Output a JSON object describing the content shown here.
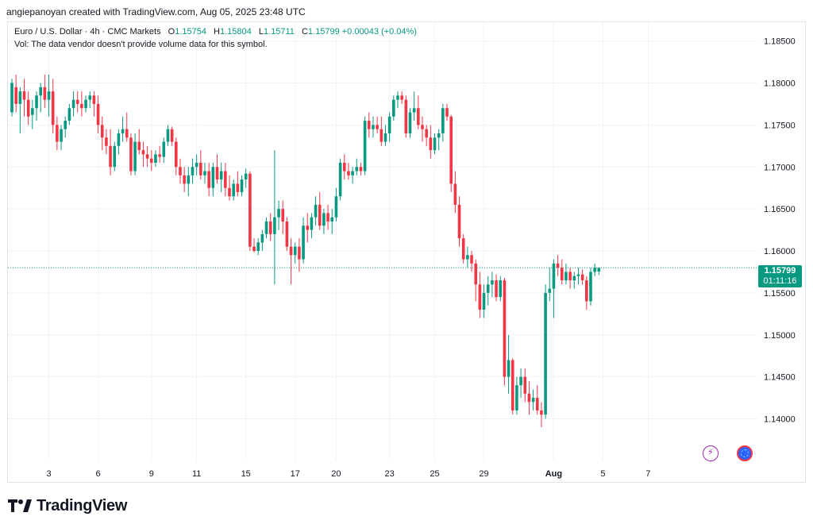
{
  "header": {
    "text": "angiepanoyan created with TradingView.com, Aug 05, 2025 23:48 UTC"
  },
  "legend": {
    "symbol": "Euro / U.S. Dollar · 4h · CMC Markets",
    "open_label": "O",
    "open": "1.15754",
    "high_label": "H",
    "high": "1.15804",
    "low_label": "L",
    "low": "1.15711",
    "close_label": "C",
    "close": "1.15799",
    "change": "+0.00043 (+0.04%)",
    "vol_note": "Vol: The data vendor doesn't provide volume data for this symbol."
  },
  "price_tag": {
    "price": "1.15799",
    "countdown": "01:11:16"
  },
  "icons": {
    "bolt": "lightning-icon",
    "globe": "globe-icon"
  },
  "logo": {
    "text": "TradingView"
  },
  "colors": {
    "up": "#089981",
    "down": "#f23645",
    "grid": "#f0f3fa",
    "axis_text": "#131722"
  },
  "chart_data": {
    "type": "candlestick",
    "timeframe": "4h",
    "ylim": [
      1.1335,
      1.1877
    ],
    "y_ticks": [
      "1.13500",
      "1.14000",
      "1.14500",
      "1.15000",
      "1.15500",
      "1.16000",
      "1.16500",
      "1.17000",
      "1.17500",
      "1.18000",
      "1.18500"
    ],
    "x_ticks": [
      {
        "label": "3",
        "i": 9
      },
      {
        "label": "6",
        "i": 21
      },
      {
        "label": "9",
        "i": 34
      },
      {
        "label": "11",
        "i": 45
      },
      {
        "label": "15",
        "i": 57
      },
      {
        "label": "17",
        "i": 69
      },
      {
        "label": "20",
        "i": 79
      },
      {
        "label": "23",
        "i": 92
      },
      {
        "label": "25",
        "i": 103
      },
      {
        "label": "29",
        "i": 115
      },
      {
        "label": "Aug",
        "i": 132,
        "bold": true
      },
      {
        "label": "5",
        "i": 144
      },
      {
        "label": "7",
        "i": 155
      }
    ],
    "last_price": 1.15799,
    "candles": [
      [
        1.1765,
        1.1805,
        1.176,
        1.18
      ],
      [
        1.1795,
        1.181,
        1.1765,
        1.1775
      ],
      [
        1.1775,
        1.1795,
        1.174,
        1.179
      ],
      [
        1.179,
        1.1805,
        1.176,
        1.178
      ],
      [
        1.178,
        1.179,
        1.175,
        1.176
      ],
      [
        1.1762,
        1.178,
        1.1745,
        1.177
      ],
      [
        1.177,
        1.179,
        1.1755,
        1.1785
      ],
      [
        1.1785,
        1.18,
        1.1765,
        1.1795
      ],
      [
        1.1795,
        1.181,
        1.177,
        1.178
      ],
      [
        1.178,
        1.181,
        1.176,
        1.179
      ],
      [
        1.179,
        1.1805,
        1.174,
        1.175
      ],
      [
        1.175,
        1.176,
        1.172,
        1.173
      ],
      [
        1.173,
        1.175,
        1.172,
        1.1745
      ],
      [
        1.1745,
        1.176,
        1.1735,
        1.1755
      ],
      [
        1.1755,
        1.1775,
        1.175,
        1.177
      ],
      [
        1.177,
        1.179,
        1.176,
        1.178
      ],
      [
        1.178,
        1.179,
        1.1765,
        1.1775
      ],
      [
        1.1775,
        1.179,
        1.176,
        1.177
      ],
      [
        1.177,
        1.1785,
        1.1765,
        1.178
      ],
      [
        1.178,
        1.179,
        1.177,
        1.1785
      ],
      [
        1.1785,
        1.179,
        1.176,
        1.1775
      ],
      [
        1.1775,
        1.1785,
        1.174,
        1.175
      ],
      [
        1.175,
        1.176,
        1.172,
        1.1735
      ],
      [
        1.1735,
        1.1745,
        1.1715,
        1.1725
      ],
      [
        1.1725,
        1.1745,
        1.169,
        1.17
      ],
      [
        1.17,
        1.173,
        1.1695,
        1.1725
      ],
      [
        1.1725,
        1.1745,
        1.1715,
        1.174
      ],
      [
        1.174,
        1.176,
        1.173,
        1.1745
      ],
      [
        1.1745,
        1.1765,
        1.173,
        1.1735
      ],
      [
        1.1735,
        1.174,
        1.169,
        1.1695
      ],
      [
        1.1695,
        1.174,
        1.169,
        1.173
      ],
      [
        1.173,
        1.1745,
        1.1715,
        1.172
      ],
      [
        1.172,
        1.173,
        1.17,
        1.1715
      ],
      [
        1.1715,
        1.1725,
        1.17,
        1.171
      ],
      [
        1.171,
        1.172,
        1.1695,
        1.1705
      ],
      [
        1.1705,
        1.172,
        1.17,
        1.1715
      ],
      [
        1.1715,
        1.1725,
        1.1705,
        1.1712
      ],
      [
        1.1712,
        1.1735,
        1.1705,
        1.173
      ],
      [
        1.173,
        1.175,
        1.1725,
        1.1745
      ],
      [
        1.1745,
        1.1748,
        1.1725,
        1.173
      ],
      [
        1.173,
        1.1735,
        1.169,
        1.17
      ],
      [
        1.17,
        1.171,
        1.168,
        1.169
      ],
      [
        1.169,
        1.17,
        1.167,
        1.168
      ],
      [
        1.168,
        1.17,
        1.1665,
        1.169
      ],
      [
        1.169,
        1.171,
        1.168,
        1.17
      ],
      [
        1.17,
        1.1715,
        1.169,
        1.1705
      ],
      [
        1.1705,
        1.172,
        1.1685,
        1.169
      ],
      [
        1.169,
        1.1705,
        1.168,
        1.1695
      ],
      [
        1.1695,
        1.1705,
        1.1665,
        1.1675
      ],
      [
        1.1675,
        1.1705,
        1.1665,
        1.17
      ],
      [
        1.17,
        1.1715,
        1.168,
        1.1685
      ],
      [
        1.1685,
        1.1705,
        1.167,
        1.1695
      ],
      [
        1.1695,
        1.1705,
        1.1665,
        1.1675
      ],
      [
        1.1675,
        1.169,
        1.166,
        1.1665
      ],
      [
        1.1665,
        1.1685,
        1.166,
        1.168
      ],
      [
        1.168,
        1.1695,
        1.1665,
        1.167
      ],
      [
        1.167,
        1.169,
        1.1665,
        1.1685
      ],
      [
        1.1685,
        1.1698,
        1.1675,
        1.1692
      ],
      [
        1.1692,
        1.1695,
        1.16,
        1.1605
      ],
      [
        1.1605,
        1.1615,
        1.1598,
        1.16
      ],
      [
        1.16,
        1.1615,
        1.1595,
        1.161
      ],
      [
        1.161,
        1.1625,
        1.16,
        1.162
      ],
      [
        1.162,
        1.164,
        1.1615,
        1.1635
      ],
      [
        1.1635,
        1.1645,
        1.1612,
        1.162
      ],
      [
        1.162,
        1.172,
        1.156,
        1.164
      ],
      [
        1.164,
        1.166,
        1.1625,
        1.165
      ],
      [
        1.165,
        1.166,
        1.162,
        1.1635
      ],
      [
        1.1635,
        1.164,
        1.16,
        1.1605
      ],
      [
        1.1605,
        1.1615,
        1.156,
        1.1595
      ],
      [
        1.1595,
        1.161,
        1.1585,
        1.1605
      ],
      [
        1.1605,
        1.1615,
        1.1575,
        1.159
      ],
      [
        1.159,
        1.164,
        1.1585,
        1.163
      ],
      [
        1.163,
        1.1645,
        1.161,
        1.1625
      ],
      [
        1.1625,
        1.1645,
        1.1615,
        1.164
      ],
      [
        1.164,
        1.1665,
        1.163,
        1.1655
      ],
      [
        1.1655,
        1.167,
        1.1625,
        1.163
      ],
      [
        1.163,
        1.165,
        1.162,
        1.1645
      ],
      [
        1.1645,
        1.1655,
        1.1625,
        1.1635
      ],
      [
        1.1635,
        1.165,
        1.162,
        1.164
      ],
      [
        1.164,
        1.1675,
        1.1635,
        1.1665
      ],
      [
        1.1665,
        1.171,
        1.166,
        1.1705
      ],
      [
        1.1705,
        1.1715,
        1.1685,
        1.1695
      ],
      [
        1.1695,
        1.1705,
        1.1685,
        1.169
      ],
      [
        1.169,
        1.17,
        1.168,
        1.1695
      ],
      [
        1.1695,
        1.171,
        1.169,
        1.17
      ],
      [
        1.17,
        1.1705,
        1.169,
        1.1695
      ],
      [
        1.1695,
        1.176,
        1.169,
        1.1755
      ],
      [
        1.1755,
        1.1765,
        1.1735,
        1.1745
      ],
      [
        1.1745,
        1.176,
        1.1735,
        1.175
      ],
      [
        1.175,
        1.176,
        1.174,
        1.1745
      ],
      [
        1.1745,
        1.176,
        1.1725,
        1.173
      ],
      [
        1.173,
        1.175,
        1.1725,
        1.174
      ],
      [
        1.174,
        1.1765,
        1.173,
        1.176
      ],
      [
        1.176,
        1.1785,
        1.1755,
        1.178
      ],
      [
        1.178,
        1.179,
        1.177,
        1.1785
      ],
      [
        1.1785,
        1.179,
        1.1775,
        1.178
      ],
      [
        1.178,
        1.1785,
        1.1735,
        1.174
      ],
      [
        1.174,
        1.177,
        1.1735,
        1.1765
      ],
      [
        1.1765,
        1.179,
        1.1755,
        1.177
      ],
      [
        1.177,
        1.1785,
        1.1745,
        1.175
      ],
      [
        1.175,
        1.176,
        1.173,
        1.1745
      ],
      [
        1.1745,
        1.175,
        1.1725,
        1.1735
      ],
      [
        1.1735,
        1.175,
        1.171,
        1.172
      ],
      [
        1.172,
        1.174,
        1.1715,
        1.1735
      ],
      [
        1.1735,
        1.1745,
        1.172,
        1.174
      ],
      [
        1.174,
        1.1775,
        1.173,
        1.177
      ],
      [
        1.177,
        1.1775,
        1.1755,
        1.176
      ],
      [
        1.176,
        1.1762,
        1.167,
        1.168
      ],
      [
        1.168,
        1.1695,
        1.1645,
        1.1655
      ],
      [
        1.1655,
        1.1665,
        1.1605,
        1.1615
      ],
      [
        1.1615,
        1.162,
        1.1585,
        1.159
      ],
      [
        1.159,
        1.1605,
        1.158,
        1.1595
      ],
      [
        1.1595,
        1.16,
        1.1575,
        1.1585
      ],
      [
        1.1585,
        1.159,
        1.154,
        1.156
      ],
      [
        1.156,
        1.1575,
        1.152,
        1.153
      ],
      [
        1.153,
        1.156,
        1.152,
        1.155
      ],
      [
        1.155,
        1.157,
        1.1535,
        1.156
      ],
      [
        1.156,
        1.1575,
        1.1545,
        1.1565
      ],
      [
        1.1565,
        1.1572,
        1.154,
        1.1545
      ],
      [
        1.1545,
        1.157,
        1.154,
        1.1565
      ],
      [
        1.1565,
        1.1568,
        1.144,
        1.145
      ],
      [
        1.145,
        1.15,
        1.143,
        1.147
      ],
      [
        1.147,
        1.1472,
        1.1405,
        1.141
      ],
      [
        1.141,
        1.145,
        1.1405,
        1.144
      ],
      [
        1.144,
        1.146,
        1.1425,
        1.145
      ],
      [
        1.145,
        1.146,
        1.142,
        1.143
      ],
      [
        1.143,
        1.1445,
        1.1405,
        1.142
      ],
      [
        1.142,
        1.1435,
        1.141,
        1.1425
      ],
      [
        1.1425,
        1.144,
        1.1405,
        1.141
      ],
      [
        1.141,
        1.142,
        1.139,
        1.1405
      ],
      [
        1.1405,
        1.156,
        1.14,
        1.155
      ],
      [
        1.155,
        1.158,
        1.154,
        1.1555
      ],
      [
        1.1555,
        1.159,
        1.152,
        1.1585
      ],
      [
        1.1585,
        1.1595,
        1.157,
        1.158
      ],
      [
        1.158,
        1.159,
        1.156,
        1.1565
      ],
      [
        1.1565,
        1.1585,
        1.156,
        1.1575
      ],
      [
        1.1575,
        1.158,
        1.1555,
        1.1565
      ],
      [
        1.1565,
        1.1575,
        1.1555,
        1.157
      ],
      [
        1.157,
        1.158,
        1.156,
        1.1572
      ],
      [
        1.1572,
        1.1578,
        1.156,
        1.1565
      ],
      [
        1.1565,
        1.157,
        1.153,
        1.154
      ],
      [
        1.154,
        1.158,
        1.1535,
        1.1575
      ],
      [
        1.1575,
        1.1585,
        1.157,
        1.158
      ],
      [
        1.15754,
        1.15804,
        1.15711,
        1.15799
      ]
    ]
  }
}
